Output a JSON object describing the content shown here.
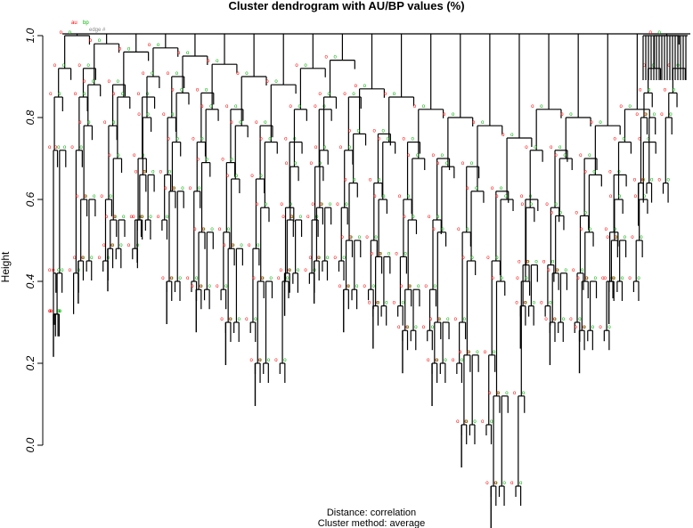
{
  "title": "Cluster dendrogram with AU/BP values (%)",
  "ylabel": "Height",
  "yticks": [
    "0.0",
    "0.2",
    "0.4",
    "0.6",
    "0.8",
    "1.0"
  ],
  "subtitle_distance": "Distance:  correlation",
  "subtitle_method": "Cluster method: average",
  "legend_au": "au",
  "legend_bp": "bp",
  "legend_edge": "edge #",
  "colors": {
    "au": "#ff0000",
    "bp": "#00b000",
    "edge": "#888888",
    "tree": "#000000"
  },
  "chart_data": {
    "type": "dendrogram",
    "y_range": [
      -0.1,
      1.0
    ],
    "clusters": [
      {
        "heights": [
          1.0,
          0.92,
          0.85,
          0.72,
          0.42,
          0.32
        ]
      },
      {
        "heights": [
          0.98,
          0.88,
          0.78,
          0.6,
          0.45
        ]
      },
      {
        "heights": [
          0.96,
          0.85,
          0.7,
          0.55,
          0.48
        ]
      },
      {
        "heights": [
          0.97,
          0.9,
          0.8,
          0.66,
          0.55
        ]
      },
      {
        "heights": [
          0.95,
          0.86,
          0.74,
          0.62,
          0.4
        ]
      },
      {
        "heights": [
          0.93,
          0.82,
          0.69,
          0.52,
          0.38
        ]
      },
      {
        "heights": [
          0.9,
          0.78,
          0.65,
          0.48,
          0.3
        ]
      },
      {
        "heights": [
          0.88,
          0.74,
          0.58,
          0.4,
          0.2
        ]
      },
      {
        "heights": [
          0.92,
          0.82,
          0.68,
          0.55,
          0.42
        ]
      },
      {
        "heights": [
          0.94,
          0.85,
          0.72,
          0.58,
          0.45
        ]
      },
      {
        "heights": [
          0.87,
          0.76,
          0.64,
          0.5,
          0.38
        ]
      },
      {
        "heights": [
          0.85,
          0.74,
          0.6,
          0.46,
          0.34
        ]
      },
      {
        "heights": [
          0.82,
          0.7,
          0.55,
          0.38,
          0.28
        ]
      },
      {
        "heights": [
          0.8,
          0.68,
          0.52,
          0.3,
          0.2
        ]
      },
      {
        "heights": [
          0.78,
          0.62,
          0.45,
          0.22,
          0.05
        ]
      },
      {
        "heights": [
          0.75,
          0.6,
          0.4,
          0.12,
          -0.1
        ]
      },
      {
        "heights": [
          0.82,
          0.72,
          0.58,
          0.44,
          0.34
        ]
      },
      {
        "heights": [
          0.8,
          0.7,
          0.56,
          0.42,
          0.3
        ]
      },
      {
        "heights": [
          0.78,
          0.66,
          0.52,
          0.4,
          0.28
        ]
      },
      {
        "heights": [
          0.82,
          0.74,
          0.6,
          0.5,
          0.4
        ]
      },
      {
        "heights": [
          1.0,
          0.92,
          0.86,
          0.8,
          0.64
        ]
      }
    ]
  }
}
